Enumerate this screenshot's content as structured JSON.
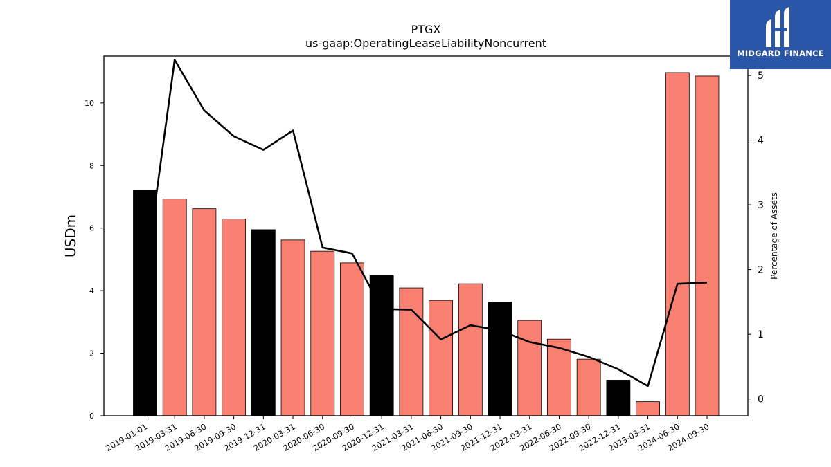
{
  "chart_data": {
    "type": "bar",
    "title": "PTGX",
    "subtitle": "us-gaap:OperatingLeaseLiabilityNoncurrent",
    "xlabel": "",
    "ylabel": "USDm",
    "y2label": "Percentage of Assets",
    "ylim": [
      0,
      11.5
    ],
    "y2lim": [
      -0.26,
      5.3
    ],
    "yticks": [
      0,
      2,
      4,
      6,
      8,
      10
    ],
    "y2ticks": [
      0,
      1,
      2,
      3,
      4,
      5
    ],
    "categories": [
      "2019-01-01",
      "2019-03-31",
      "2019-06-30",
      "2019-09-30",
      "2019-12-31",
      "2020-03-31",
      "2020-06-30",
      "2020-09-30",
      "2020-12-31",
      "2021-03-31",
      "2021-06-30",
      "2021-09-30",
      "2021-12-31",
      "2022-03-31",
      "2022-06-30",
      "2022-09-30",
      "2022-12-31",
      "2023-03-31",
      "2024-06-30",
      "2024-09-30"
    ],
    "series": [
      {
        "kind": "bar",
        "axis": "left",
        "values": [
          7.22,
          6.93,
          6.62,
          6.29,
          5.95,
          5.62,
          5.26,
          4.89,
          4.48,
          4.09,
          3.69,
          4.22,
          3.64,
          3.05,
          2.45,
          1.81,
          1.14,
          0.45,
          10.97,
          10.86
        ],
        "colors": [
          "#000000",
          "#fa8072",
          "#fa8072",
          "#fa8072",
          "#000000",
          "#fa8072",
          "#fa8072",
          "#fa8072",
          "#000000",
          "#fa8072",
          "#fa8072",
          "#fa8072",
          "#000000",
          "#fa8072",
          "#fa8072",
          "#fa8072",
          "#000000",
          "#fa8072",
          "#fa8072",
          "#fa8072"
        ]
      },
      {
        "kind": "line",
        "axis": "right",
        "color": "#000000",
        "values": [
          1.88,
          5.24,
          4.46,
          4.06,
          3.85,
          4.15,
          2.34,
          2.25,
          1.39,
          1.38,
          0.92,
          1.14,
          1.06,
          0.88,
          0.79,
          0.65,
          0.46,
          0.2,
          1.78,
          1.8
        ]
      }
    ],
    "grid": false,
    "legend": "none"
  },
  "logo": {
    "text": "MIDGARD FINANCE",
    "icon": "midgard-logo-icon",
    "color": "#2a56a8"
  }
}
